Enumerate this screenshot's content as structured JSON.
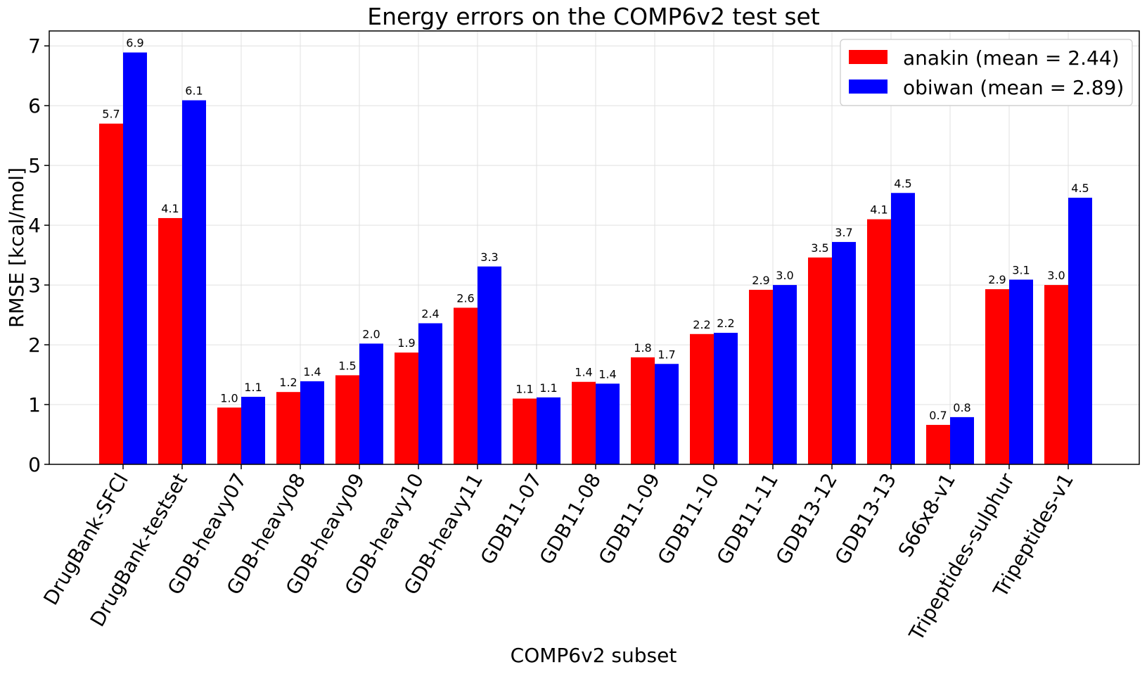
{
  "chart_data": {
    "type": "bar",
    "title": "Energy errors on the COMP6v2 test set",
    "xlabel": "COMP6v2 subset",
    "ylabel": "RMSE [kcal/mol]",
    "ylim": [
      0,
      7.25
    ],
    "yticks": [
      0,
      1,
      2,
      3,
      4,
      5,
      6,
      7
    ],
    "grid": true,
    "legend_position": "top-right",
    "categories": [
      "DrugBank-SFCl",
      "DrugBank-testset",
      "GDB-heavy07",
      "GDB-heavy08",
      "GDB-heavy09",
      "GDB-heavy10",
      "GDB-heavy11",
      "GDB11-07",
      "GDB11-08",
      "GDB11-09",
      "GDB11-10",
      "GDB11-11",
      "GDB13-12",
      "GDB13-13",
      "S66x8-v1",
      "Tripeptides-sulphur",
      "Tripeptides-v1"
    ],
    "series": [
      {
        "name": "anakin",
        "legend": "anakin (mean = 2.44)",
        "color": "#ff0000",
        "values": [
          5.7,
          4.12,
          0.95,
          1.21,
          1.49,
          1.87,
          2.62,
          1.1,
          1.38,
          1.79,
          2.18,
          2.92,
          3.46,
          4.1,
          0.66,
          2.93,
          3.0
        ],
        "labels": [
          "5.7",
          "4.1",
          "1.0",
          "1.2",
          "1.5",
          "1.9",
          "2.6",
          "1.1",
          "1.4",
          "1.8",
          "2.2",
          "2.9",
          "3.5",
          "4.1",
          "0.7",
          "2.9",
          "3.0"
        ]
      },
      {
        "name": "obiwan",
        "legend": "obiwan (mean = 2.89)",
        "color": "#0000ff",
        "values": [
          6.89,
          6.09,
          1.13,
          1.39,
          2.02,
          2.36,
          3.31,
          1.12,
          1.35,
          1.68,
          2.2,
          3.0,
          3.72,
          4.54,
          0.79,
          3.09,
          4.46
        ],
        "labels": [
          "6.9",
          "6.1",
          "1.1",
          "1.4",
          "2.0",
          "2.4",
          "3.3",
          "1.1",
          "1.4",
          "1.7",
          "2.2",
          "3.0",
          "3.7",
          "4.5",
          "0.8",
          "3.1",
          "4.5"
        ]
      }
    ]
  }
}
